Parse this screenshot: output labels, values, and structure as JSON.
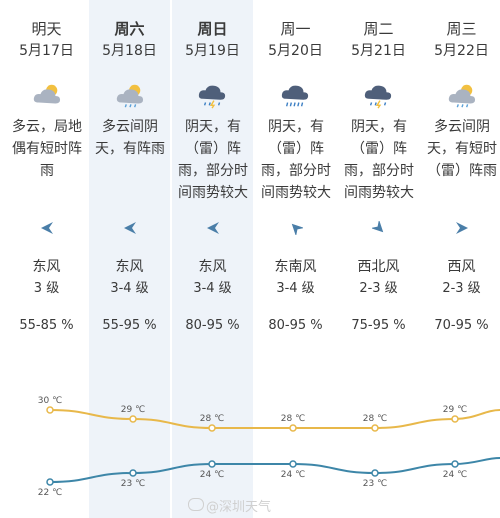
{
  "days": [
    {
      "name": "明天",
      "date": "5月17日",
      "bold": false,
      "icon": "cloudy-sun-icon",
      "desc": "多云，局地偶有短时阵雨",
      "wind_dir": "东风",
      "wind_level": "3 级",
      "humidity": "55-85 %",
      "wind_arrow": "arrow-west-icon"
    },
    {
      "name": "周六",
      "date": "5月18日",
      "bold": true,
      "icon": "cloudy-rain-sun-icon",
      "desc": "多云间阴天，有阵雨",
      "wind_dir": "东风",
      "wind_level": "3-4 级",
      "humidity": "55-95 %",
      "wind_arrow": "arrow-west-icon"
    },
    {
      "name": "周日",
      "date": "5月19日",
      "bold": true,
      "icon": "thunder-rain-icon",
      "desc": "阴天，有（雷）阵雨，部分时间雨势较大",
      "wind_dir": "东风",
      "wind_level": "3-4 级",
      "humidity": "80-95 %",
      "wind_arrow": "arrow-west-icon"
    },
    {
      "name": "周一",
      "date": "5月20日",
      "bold": false,
      "icon": "heavy-rain-icon",
      "desc": "阴天，有（雷）阵雨，部分时间雨势较大",
      "wind_dir": "东南风",
      "wind_level": "3-4 级",
      "humidity": "80-95 %",
      "wind_arrow": "arrow-northwest-icon"
    },
    {
      "name": "周二",
      "date": "5月21日",
      "bold": false,
      "icon": "thunder-rain-icon",
      "desc": "阴天，有（雷）阵雨，部分时间雨势较大",
      "wind_dir": "西北风",
      "wind_level": "2-3 级",
      "humidity": "75-95 %",
      "wind_arrow": "arrow-southeast-icon"
    },
    {
      "name": "周三",
      "date": "5月22日",
      "bold": false,
      "icon": "cloudy-rain-sun-icon",
      "desc": "多云间阴天，有短时（雷）阵雨",
      "wind_dir": "西风",
      "wind_level": "2-3 级",
      "humidity": "70-95 %",
      "wind_arrow": "arrow-east-icon"
    }
  ],
  "high_temps": [
    "30 ℃",
    "29 ℃",
    "28 ℃",
    "28 ℃",
    "28 ℃",
    "29 ℃"
  ],
  "low_temps": [
    "22 ℃",
    "23 ℃",
    "24 ℃",
    "24 ℃",
    "23 ℃",
    "24 ℃"
  ],
  "high_values": [
    30,
    29,
    28,
    28,
    28,
    29
  ],
  "low_values": [
    22,
    23,
    24,
    24,
    23,
    24
  ],
  "colors": {
    "high_line": "#e8b84a",
    "low_line": "#3d86a8",
    "highlight_col": "#eef3f9",
    "wind_arrow": "#4a7ea8"
  },
  "watermark": "@深圳天气"
}
